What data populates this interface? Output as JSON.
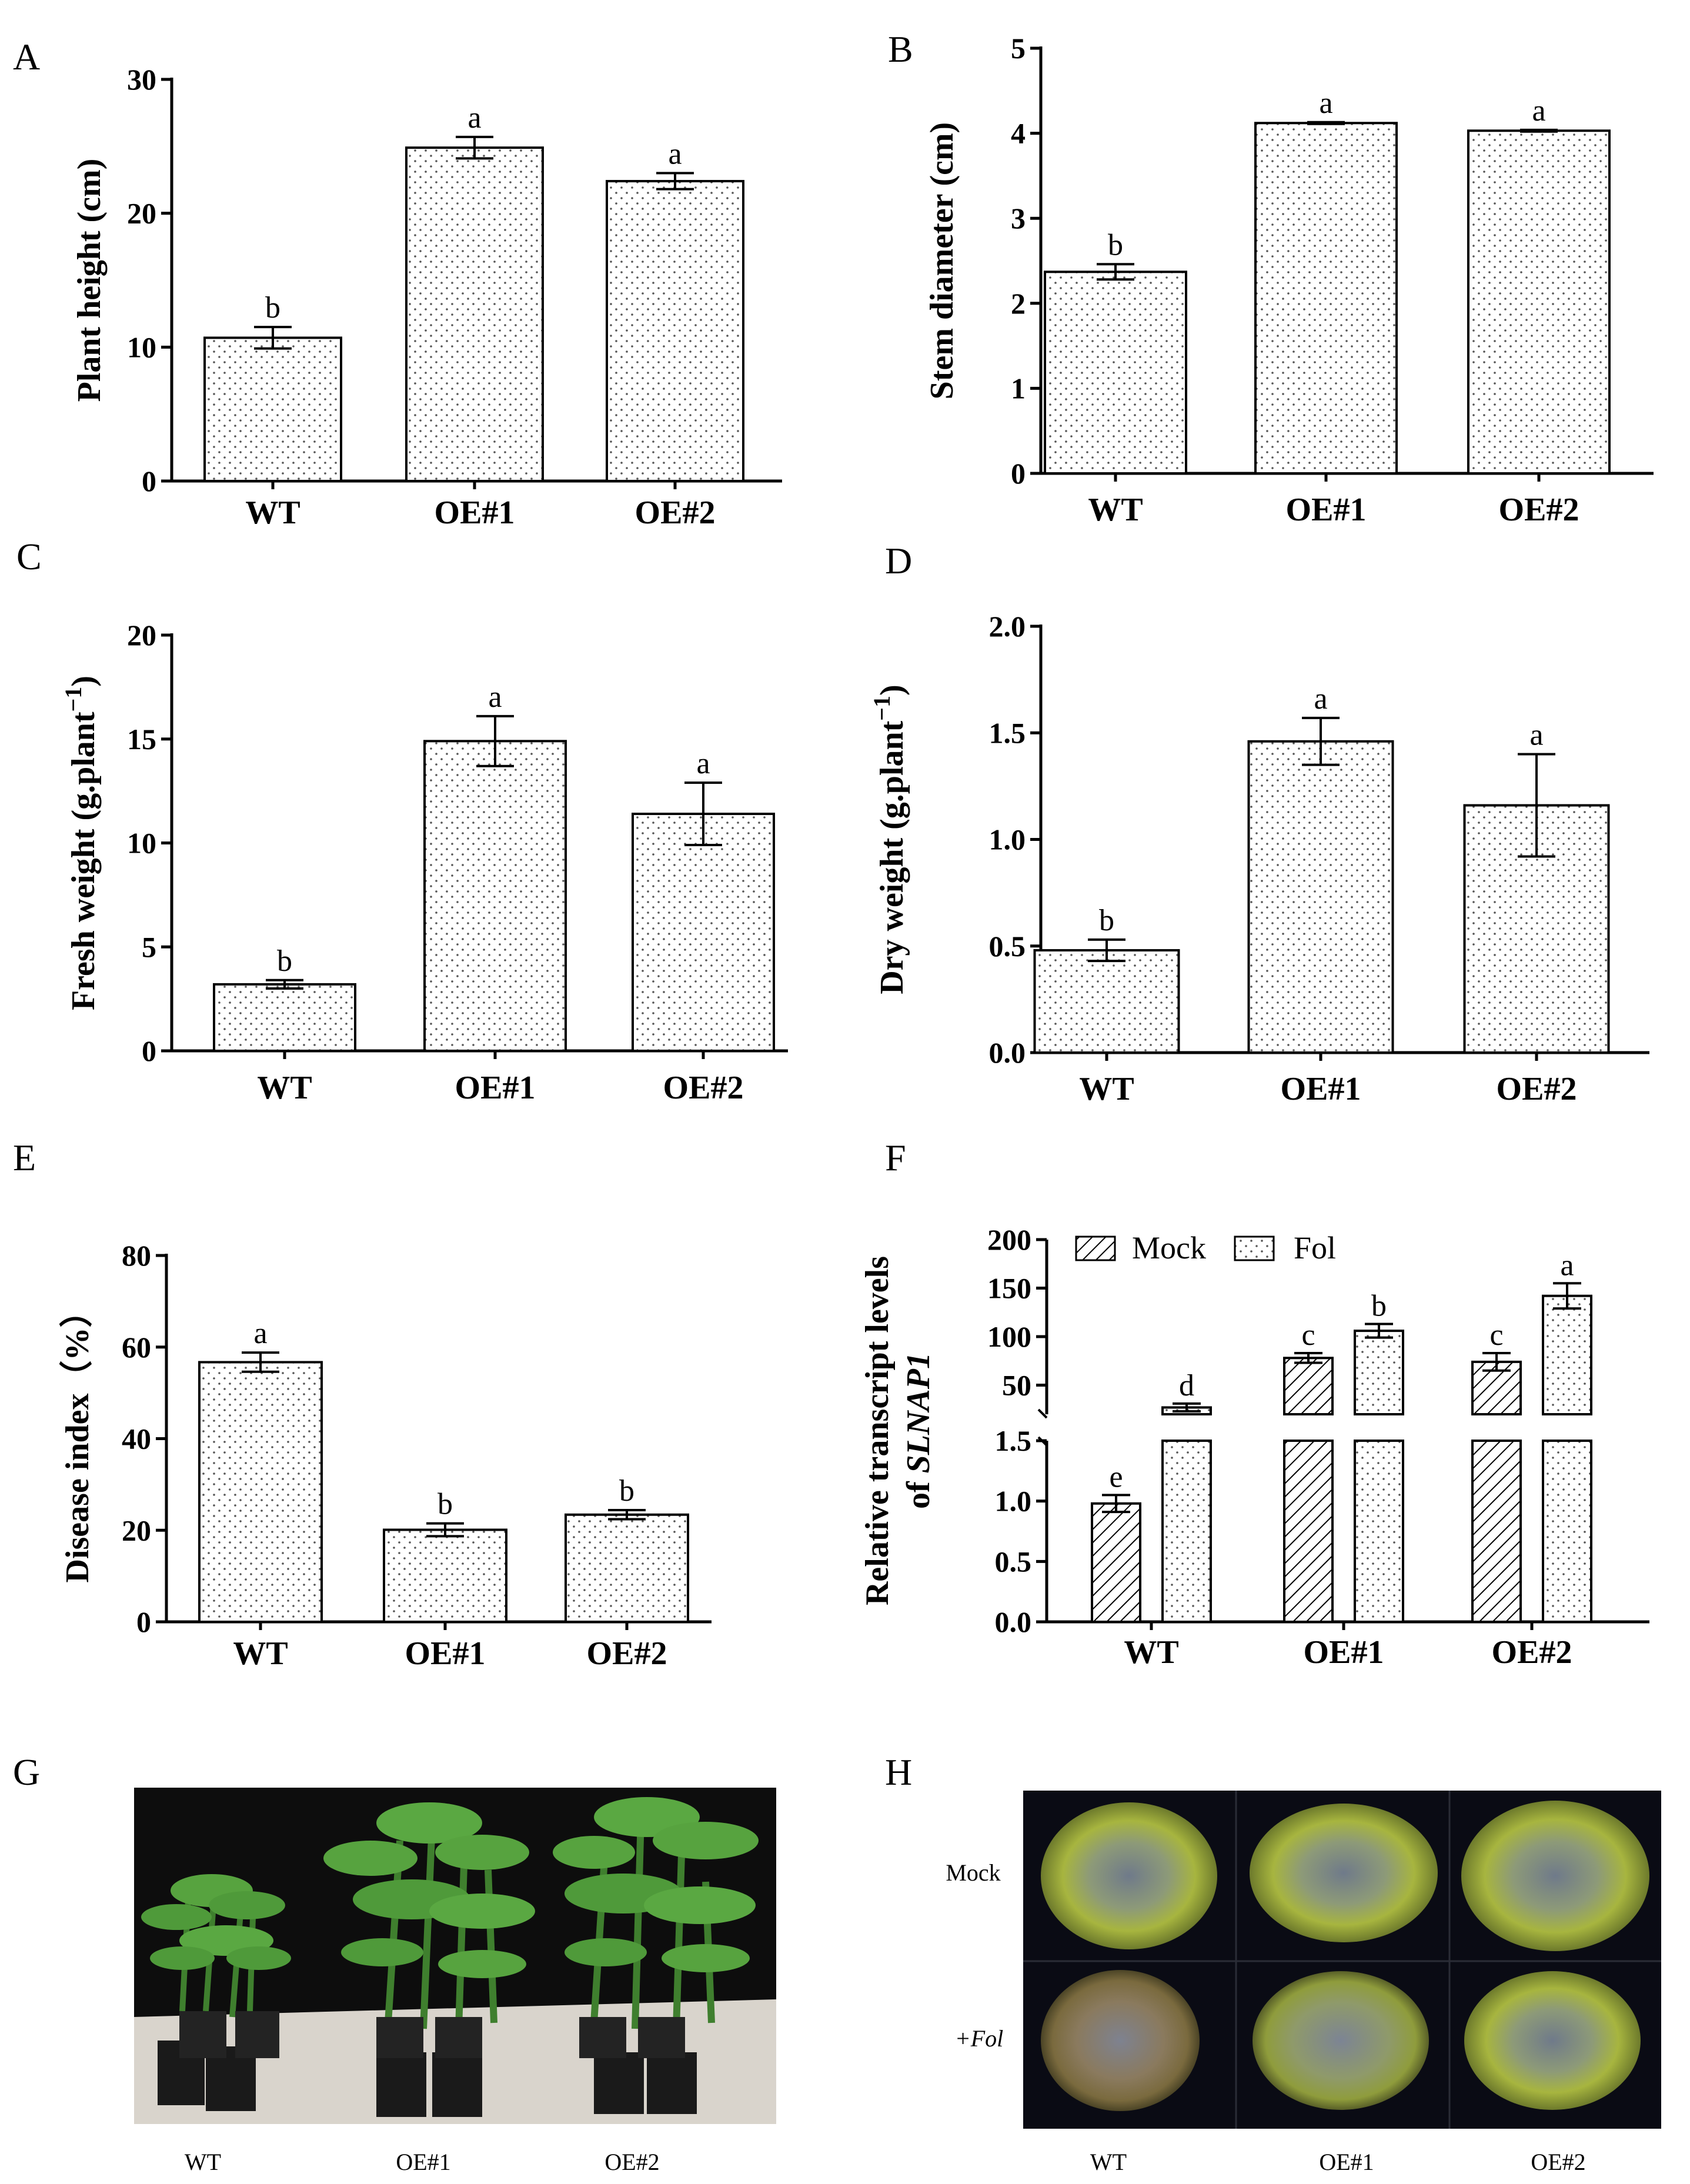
{
  "panels": {
    "A": "A",
    "B": "B",
    "C": "C",
    "D": "D",
    "E": "E",
    "F": "F",
    "G": "G",
    "H": "H"
  },
  "chart_data": [
    {
      "panel": "A",
      "type": "bar",
      "categories": [
        "WT",
        "OE#1",
        "OE#2"
      ],
      "values": [
        10.7,
        24.9,
        22.4
      ],
      "errors": [
        0.8,
        0.8,
        0.6
      ],
      "letters": [
        "b",
        "a",
        "a"
      ],
      "ylabel": "Plant height (cm)",
      "ylim": [
        0,
        30
      ],
      "yticks": [
        0,
        10,
        20,
        30
      ],
      "ytick_labels": [
        "0",
        "10",
        "20",
        "30"
      ]
    },
    {
      "panel": "B",
      "type": "bar",
      "categories": [
        "WT",
        "OE#1",
        "OE#2"
      ],
      "values": [
        2.37,
        4.12,
        4.03
      ],
      "errors": [
        0.09,
        0.01,
        0.01
      ],
      "letters": [
        "b",
        "a",
        "a"
      ],
      "ylabel": "Stem diameter (cm)",
      "ylim": [
        0,
        5
      ],
      "yticks": [
        0,
        1,
        2,
        3,
        4,
        5
      ],
      "ytick_labels": [
        "0",
        "1",
        "2",
        "3",
        "4",
        "5"
      ]
    },
    {
      "panel": "C",
      "type": "bar",
      "categories": [
        "WT",
        "OE#1",
        "OE#2"
      ],
      "values": [
        3.2,
        14.9,
        11.4
      ],
      "errors": [
        0.2,
        1.2,
        1.5
      ],
      "letters": [
        "b",
        "a",
        "a"
      ],
      "ylabel": "Fresh weight (g.plant",
      "ylabel_sup": "−1",
      "ylabel_end": ")",
      "ylim": [
        0,
        20
      ],
      "yticks": [
        0,
        5,
        10,
        15,
        20
      ],
      "ytick_labels": [
        "0",
        "5",
        "10",
        "15",
        "20"
      ]
    },
    {
      "panel": "D",
      "type": "bar",
      "categories": [
        "WT",
        "OE#1",
        "OE#2"
      ],
      "values": [
        0.48,
        1.46,
        1.16
      ],
      "errors": [
        0.05,
        0.11,
        0.24
      ],
      "letters": [
        "b",
        "a",
        "a"
      ],
      "ylabel": "Dry weight (g.plant",
      "ylabel_sup": "−1",
      "ylabel_end": ")",
      "ylim": [
        0,
        2
      ],
      "yticks": [
        0,
        0.5,
        1,
        1.5,
        2
      ],
      "ytick_labels": [
        "0.0",
        "0.5",
        "1.0",
        "1.5",
        "2.0"
      ]
    },
    {
      "panel": "E",
      "type": "bar",
      "categories": [
        "WT",
        "OE#1",
        "OE#2"
      ],
      "values": [
        56.7,
        20.1,
        23.4
      ],
      "errors": [
        2.1,
        1.4,
        1.0
      ],
      "letters": [
        "a",
        "b",
        "b"
      ],
      "ylabel": "Disease index（%）",
      "ylim": [
        0,
        80
      ],
      "yticks": [
        0,
        20,
        40,
        60,
        80
      ],
      "ytick_labels": [
        "0",
        "20",
        "40",
        "60",
        "80"
      ]
    },
    {
      "panel": "F",
      "type": "bar",
      "categories": [
        "WT",
        "OE#1",
        "OE#2"
      ],
      "series": [
        {
          "name": "Mock",
          "values": [
            0.98,
            78,
            74
          ],
          "errors": [
            0.07,
            5,
            9
          ],
          "letters": [
            "e",
            "c",
            "c"
          ]
        },
        {
          "name": "Fol",
          "values": [
            27,
            106,
            142
          ],
          "errors": [
            4,
            7,
            13
          ],
          "letters": [
            "d",
            "b",
            "a"
          ]
        }
      ],
      "ylabel_line1": "Relative transcript levels",
      "ylabel_line2": "of ",
      "ylabel_gene": "SLNAP1",
      "broken_axis": {
        "lower": [
          0,
          1.5
        ],
        "upper": [
          20,
          200
        ]
      },
      "lower_ticks": [
        0,
        0.5,
        1,
        1.5
      ],
      "lower_tick_labels": [
        "0.0",
        "0.5",
        "1.0",
        "1.5"
      ],
      "upper_ticks": [
        50,
        100,
        150,
        200
      ],
      "upper_tick_labels": [
        "50",
        "100",
        "150",
        "200"
      ]
    }
  ],
  "photo_G": {
    "labels": [
      "WT",
      "OE#1",
      "OE#2"
    ]
  },
  "photo_H": {
    "row_labels": [
      "Mock",
      "+Fol"
    ],
    "col_labels": [
      "WT",
      "OE#1",
      "OE#2"
    ]
  },
  "colors": {
    "bar_fill": "#ffffff",
    "bar_stroke": "#000000",
    "dots": "#555555",
    "photo_bg_G": "#0d0d0d",
    "photo_floor_G": "#d9d4cc",
    "plant_green": "#4f9a3a",
    "pot_black": "#1a1a1a",
    "photo_bg_H": "#0a0b14",
    "stem_green": "#9fb43e"
  }
}
